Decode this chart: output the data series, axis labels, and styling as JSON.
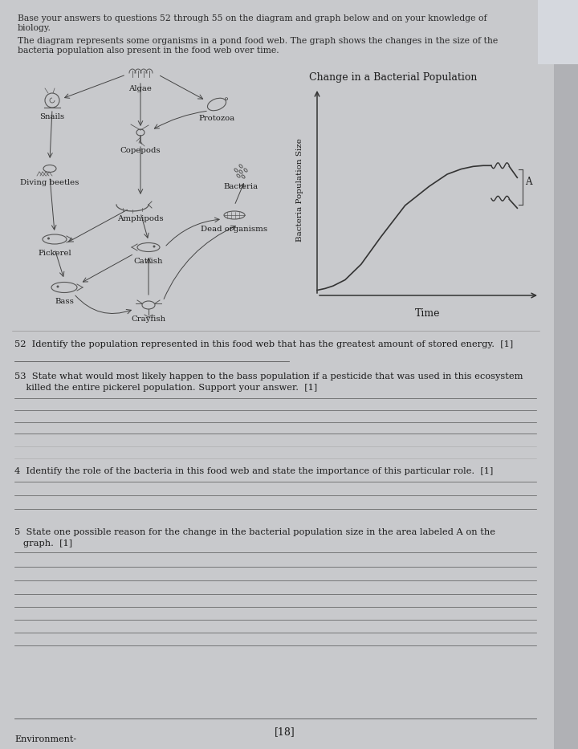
{
  "page_bg": "#c8c9cc",
  "paper_bg": "#dddee2",
  "paper_main": "#e2e3e7",
  "text_color": "#1a1a1a",
  "line_color": "#555555",
  "arrow_color": "#444444",
  "graph_line": "#333333",
  "title_line1": "Base your answers to questions 52 through 55 on the diagram and graph below and on your knowledge of",
  "title_line2": "biology.",
  "intro_line1": "The diagram represents some organisms in a pond food web. The graph shows the changes in the size of the",
  "intro_line2": "bacteria population also present in the food web over time.",
  "diagram_title": "Change in a Bacterial Population",
  "graph_ylabel": "Bacteria Population Size",
  "graph_xlabel": "Time",
  "q52_text": "52  Identify the population represented in this food web that has the greatest amount of stored energy.  [1]",
  "q53_line1": "53  State what would most likely happen to the bass population if a pesticide that was used in this ecosystem",
  "q53_line2": "    killed the entire pickerel population. Support your answer.  [1]",
  "q54_text": "4  Identify the role of the bacteria in this food web and state the importance of this particular role.  [1]",
  "q55_line1": "5  State one possible reason for the change in the bacterial population size in the area labeled A on the",
  "q55_line2": "   graph.  [1]",
  "footer_center": "[18]",
  "footer_left": "Environment-",
  "organisms": [
    "Algae",
    "Snails",
    "Protozoa",
    "Copepods",
    "Diving beetles",
    "Bacteria",
    "Amphipods",
    "Dead organisms",
    "Pickerel",
    "Catfish",
    "Bass",
    "Crayfish"
  ]
}
